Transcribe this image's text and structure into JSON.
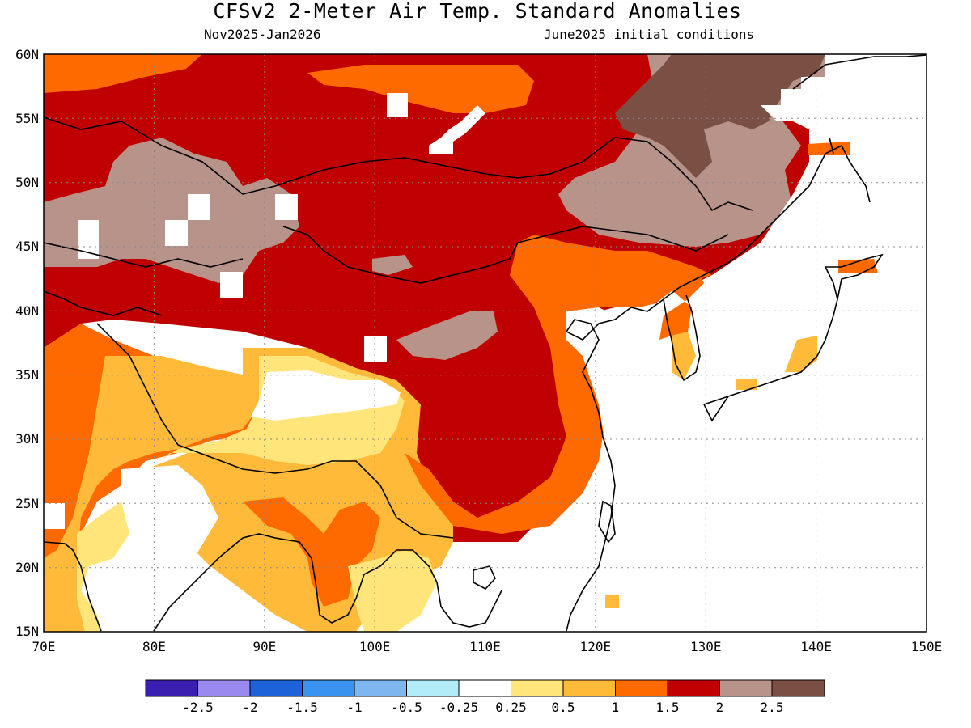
{
  "title": "CFSv2 2-Meter Air Temp. Standard Anomalies",
  "subtitle_left": "Nov2025-Jan2026",
  "subtitle_right": "June2025 initial conditions",
  "map": {
    "lat_range": [
      15,
      60
    ],
    "lon_range": [
      70,
      150
    ],
    "lat_ticks": [
      "15N",
      "20N",
      "25N",
      "30N",
      "35N",
      "40N",
      "45N",
      "50N",
      "55N",
      "60N"
    ],
    "lon_ticks": [
      "70E",
      "80E",
      "90E",
      "100E",
      "110E",
      "120E",
      "130E",
      "140E",
      "150E"
    ],
    "grid": "dotted"
  },
  "colorbar": {
    "colors": [
      "#3a1fb0",
      "#9a8af0",
      "#1d62d8",
      "#3b93f0",
      "#7eb6f0",
      "#b2ecf8",
      "#ffffff",
      "#ffe57a",
      "#ffba3a",
      "#ff6a00",
      "#c00000",
      "#b8938a",
      "#7a5044"
    ],
    "labels": [
      "-2.5",
      "-2",
      "-1.5",
      "-1",
      "-0.5",
      "-0.25",
      "0.25",
      "0.5",
      "1",
      "1.5",
      "2",
      "2.5"
    ]
  },
  "colors": {
    "above_2.5": "#7a5044",
    "2_to_2.5": "#b8938a",
    "1.5_to_2": "#c00000",
    "1_to_1.5": "#ff6a00",
    "0.5_to_1": "#ffba3a",
    "0.25_to_0.5": "#ffe57a",
    "neutral": "#ffffff"
  }
}
